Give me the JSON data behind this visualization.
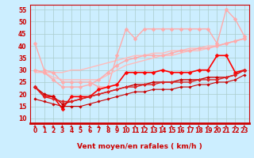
{
  "xlabel": "Vent moyen/en rafales ( km/h )",
  "bg_color": "#cceeff",
  "grid_color": "#aacccc",
  "xlim": [
    -0.5,
    23.5
  ],
  "ylim": [
    8,
    57
  ],
  "yticks": [
    10,
    15,
    20,
    25,
    30,
    35,
    40,
    45,
    50,
    55
  ],
  "xticks": [
    0,
    1,
    2,
    3,
    4,
    5,
    6,
    7,
    8,
    9,
    10,
    11,
    12,
    13,
    14,
    15,
    16,
    17,
    18,
    19,
    20,
    21,
    22,
    23
  ],
  "series": [
    {
      "x": [
        0,
        1,
        2,
        3,
        4,
        5,
        6,
        7,
        8,
        9,
        10,
        11,
        12,
        13,
        14,
        15,
        16,
        17,
        18,
        19,
        20,
        21,
        22,
        23
      ],
      "y": [
        29,
        29,
        29,
        29,
        30,
        30,
        31,
        32,
        33,
        34,
        35,
        36,
        36,
        37,
        37,
        38,
        38,
        39,
        39,
        40,
        40,
        41,
        42,
        43
      ],
      "color": "#ffbbbb",
      "lw": 1.0,
      "marker": null
    },
    {
      "x": [
        0,
        1,
        2,
        3,
        4,
        5,
        6,
        7,
        8,
        9,
        10,
        11,
        12,
        13,
        14,
        15,
        16,
        17,
        18,
        19,
        20,
        21,
        22,
        23
      ],
      "y": [
        41,
        30,
        29,
        25,
        25,
        25,
        25,
        23,
        23,
        36,
        47,
        43,
        47,
        47,
        47,
        47,
        47,
        47,
        47,
        47,
        41,
        55,
        51,
        44
      ],
      "color": "#ffaaaa",
      "lw": 1.0,
      "marker": "D",
      "ms": 2.5
    },
    {
      "x": [
        0,
        1,
        2,
        3,
        4,
        5,
        6,
        7,
        8,
        9,
        10,
        11,
        12,
        13,
        14,
        15,
        16,
        17,
        18,
        19,
        20,
        21,
        22,
        23
      ],
      "y": [
        30,
        29,
        27,
        26,
        26,
        26,
        26,
        26,
        28,
        30,
        32,
        33,
        34,
        35,
        36,
        36,
        37,
        38,
        38,
        39,
        40,
        41,
        42,
        43
      ],
      "color": "#ffbbbb",
      "lw": 1.0,
      "marker": null
    },
    {
      "x": [
        0,
        1,
        2,
        3,
        4,
        5,
        6,
        7,
        8,
        9,
        10,
        11,
        12,
        13,
        14,
        15,
        16,
        17,
        18,
        19,
        20,
        21,
        22,
        23
      ],
      "y": [
        30,
        29,
        26,
        23,
        23,
        23,
        24,
        26,
        29,
        32,
        34,
        35,
        36,
        36,
        36,
        37,
        38,
        38,
        39,
        39,
        40,
        41,
        42,
        43
      ],
      "color": "#ffaaaa",
      "lw": 1.0,
      "marker": "D",
      "ms": 2.5
    },
    {
      "x": [
        0,
        1,
        2,
        3,
        4,
        5,
        6,
        7,
        8,
        9,
        10,
        11,
        12,
        13,
        14,
        15,
        16,
        17,
        18,
        19,
        20,
        21,
        22,
        23
      ],
      "y": [
        23,
        19,
        19,
        14,
        19,
        19,
        19,
        22,
        23,
        24,
        29,
        29,
        29,
        29,
        30,
        29,
        29,
        29,
        30,
        30,
        36,
        36,
        29,
        30
      ],
      "color": "#ff0000",
      "lw": 1.2,
      "marker": "D",
      "ms": 2.5
    },
    {
      "x": [
        0,
        1,
        2,
        3,
        4,
        5,
        6,
        7,
        8,
        9,
        10,
        11,
        12,
        13,
        14,
        15,
        16,
        17,
        18,
        19,
        20,
        21,
        22,
        23
      ],
      "y": [
        23,
        20,
        19,
        16,
        17,
        18,
        19,
        20,
        21,
        22,
        23,
        24,
        24,
        25,
        25,
        25,
        26,
        26,
        26,
        27,
        27,
        27,
        28,
        30
      ],
      "color": "#cc0000",
      "lw": 1.0,
      "marker": "D",
      "ms": 2.0
    },
    {
      "x": [
        0,
        1,
        2,
        3,
        4,
        5,
        6,
        7,
        8,
        9,
        10,
        11,
        12,
        13,
        14,
        15,
        16,
        17,
        18,
        19,
        20,
        21,
        22,
        23
      ],
      "y": [
        23,
        19,
        18,
        17,
        17,
        18,
        19,
        20,
        21,
        22,
        23,
        23,
        24,
        24,
        25,
        25,
        25,
        25,
        26,
        26,
        26,
        27,
        28,
        30
      ],
      "color": "#dd2222",
      "lw": 1.0,
      "marker": "D",
      "ms": 2.0
    },
    {
      "x": [
        0,
        1,
        2,
        3,
        4,
        5,
        6,
        7,
        8,
        9,
        10,
        11,
        12,
        13,
        14,
        15,
        16,
        17,
        18,
        19,
        20,
        21,
        22,
        23
      ],
      "y": [
        18,
        17,
        16,
        15,
        15,
        15,
        16,
        17,
        18,
        19,
        20,
        21,
        21,
        22,
        22,
        22,
        23,
        23,
        24,
        24,
        25,
        25,
        26,
        28
      ],
      "color": "#cc0000",
      "lw": 0.8,
      "marker": "D",
      "ms": 1.8
    }
  ],
  "arrow_color": "#cc0000",
  "tick_color": "#cc0000",
  "tick_fontsize": 5.5,
  "label_fontsize": 6.5
}
